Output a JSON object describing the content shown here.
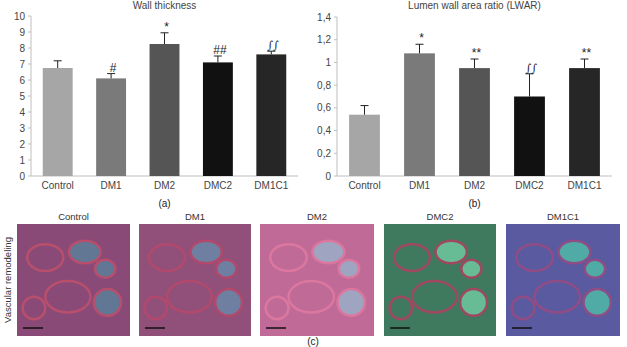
{
  "chart_data": [
    {
      "type": "bar",
      "title": "Wall thickness",
      "xlabel": "(a)",
      "categories": [
        "Control",
        "DM1",
        "DM2",
        "DMC2",
        "DM1C1"
      ],
      "values": [
        6.75,
        6.1,
        8.25,
        7.1,
        7.6
      ],
      "errors": [
        0.45,
        0.3,
        0.7,
        0.4,
        0.2
      ],
      "annotations": [
        null,
        "#",
        "*",
        "##",
        "∫∫"
      ],
      "colors": [
        "#a6a6a6",
        "#7a7a7a",
        "#555555",
        "#111111",
        "#262626"
      ],
      "ylim": [
        0,
        10
      ],
      "yticks": [
        0,
        1,
        2,
        3,
        4,
        5,
        6,
        7,
        8,
        9,
        10
      ],
      "grid": false
    },
    {
      "type": "bar",
      "title": "Lumen wall area ratio (LWAR)",
      "xlabel": "(b)",
      "categories": [
        "Control",
        "DM1",
        "DM2",
        "DMC2",
        "DM1C1"
      ],
      "values": [
        0.54,
        1.08,
        0.95,
        0.7,
        0.95
      ],
      "errors": [
        0.08,
        0.08,
        0.08,
        0.2,
        0.08
      ],
      "annotations": [
        null,
        "*",
        "**",
        "∫∫",
        "**"
      ],
      "colors": [
        "#a6a6a6",
        "#7a7a7a",
        "#555555",
        "#111111",
        "#262626"
      ],
      "ylim": [
        0,
        1.4
      ],
      "yticks": [
        0,
        {
          "value": 0.2,
          "label": "0,2"
        },
        {
          "value": 0.4,
          "label": "0,4"
        },
        {
          "value": 0.6,
          "label": "0,6"
        },
        {
          "value": 0.8,
          "label": "0,8"
        },
        1,
        {
          "value": 1.2,
          "label": "1,2"
        },
        {
          "value": 1.4,
          "label": "1,4"
        }
      ],
      "grid": false
    }
  ],
  "panel_c": {
    "label": "(c)",
    "row_label": "Vascular remodeling",
    "images": [
      "Control",
      "DM1",
      "DM2",
      "DMC2",
      "DM1C1"
    ]
  }
}
